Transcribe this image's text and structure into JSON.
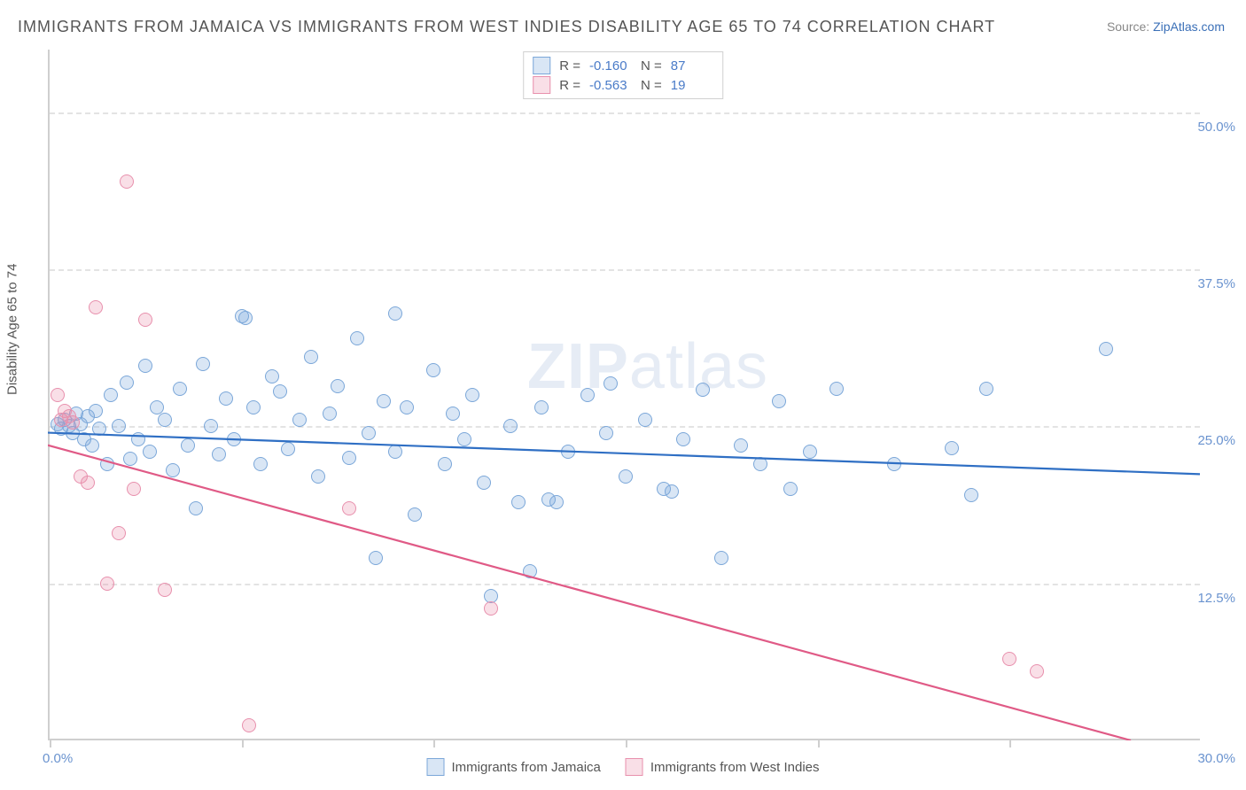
{
  "title": "IMMIGRANTS FROM JAMAICA VS IMMIGRANTS FROM WEST INDIES DISABILITY AGE 65 TO 74 CORRELATION CHART",
  "source_prefix": "Source: ",
  "source_link": "ZipAtlas.com",
  "y_axis_title": "Disability Age 65 to 74",
  "watermark_bold": "ZIP",
  "watermark_light": "atlas",
  "chart": {
    "type": "scatter",
    "xlim": [
      0,
      30
    ],
    "ylim": [
      0,
      55
    ],
    "x_ticks": [
      0,
      5,
      10,
      15,
      20,
      25
    ],
    "x_ticklabels": [
      "0.0%",
      "",
      "",
      "",
      "",
      ""
    ],
    "x_end_label": "30.0%",
    "y_gridlines": [
      12.5,
      25.0,
      37.5,
      50.0
    ],
    "y_ticklabels": [
      "12.5%",
      "25.0%",
      "37.5%",
      "50.0%"
    ],
    "background_color": "#ffffff",
    "grid_color": "#e3e3e3",
    "axis_color": "#cfcfcf",
    "label_color": "#6a93cf",
    "point_radius": 8,
    "series": [
      {
        "name": "Immigrants from Jamaica",
        "fill": "rgba(120,165,220,0.28)",
        "stroke": "#7ba7d9",
        "line_color": "#2f6fc4",
        "line_width": 2.2,
        "R": "-0.160",
        "N": "87",
        "trend": {
          "x1": 0,
          "y1": 24.5,
          "x2": 30,
          "y2": 21.2
        },
        "points": [
          [
            0.2,
            25.2
          ],
          [
            0.3,
            24.8
          ],
          [
            0.4,
            25.5
          ],
          [
            0.5,
            25.0
          ],
          [
            0.6,
            24.5
          ],
          [
            0.7,
            26.0
          ],
          [
            0.8,
            25.2
          ],
          [
            0.9,
            24.0
          ],
          [
            1.0,
            25.8
          ],
          [
            1.1,
            23.5
          ],
          [
            1.2,
            26.2
          ],
          [
            1.3,
            24.8
          ],
          [
            1.5,
            22.0
          ],
          [
            1.6,
            27.5
          ],
          [
            1.8,
            25.0
          ],
          [
            2.0,
            28.5
          ],
          [
            2.1,
            22.4
          ],
          [
            2.3,
            24.0
          ],
          [
            2.5,
            29.8
          ],
          [
            2.6,
            23.0
          ],
          [
            2.8,
            26.5
          ],
          [
            3.0,
            25.5
          ],
          [
            3.2,
            21.5
          ],
          [
            3.4,
            28.0
          ],
          [
            3.6,
            23.5
          ],
          [
            3.8,
            18.5
          ],
          [
            4.0,
            30.0
          ],
          [
            4.2,
            25.0
          ],
          [
            4.4,
            22.8
          ],
          [
            4.6,
            27.2
          ],
          [
            4.8,
            24.0
          ],
          [
            5.0,
            33.8
          ],
          [
            5.1,
            33.6
          ],
          [
            5.3,
            26.5
          ],
          [
            5.5,
            22.0
          ],
          [
            5.8,
            29.0
          ],
          [
            6.0,
            27.8
          ],
          [
            6.2,
            23.2
          ],
          [
            6.5,
            25.5
          ],
          [
            6.8,
            30.5
          ],
          [
            7.0,
            21.0
          ],
          [
            7.3,
            26.0
          ],
          [
            7.5,
            28.2
          ],
          [
            7.8,
            22.5
          ],
          [
            8.0,
            32.0
          ],
          [
            8.3,
            24.5
          ],
          [
            8.5,
            14.5
          ],
          [
            8.7,
            27.0
          ],
          [
            9.0,
            23.0
          ],
          [
            9.0,
            34.0
          ],
          [
            9.3,
            26.5
          ],
          [
            9.5,
            18.0
          ],
          [
            10.0,
            29.5
          ],
          [
            10.3,
            22.0
          ],
          [
            10.5,
            26.0
          ],
          [
            10.8,
            24.0
          ],
          [
            11.0,
            27.5
          ],
          [
            11.3,
            20.5
          ],
          [
            11.5,
            11.5
          ],
          [
            12.0,
            25.0
          ],
          [
            12.2,
            19.0
          ],
          [
            12.5,
            13.5
          ],
          [
            12.8,
            26.5
          ],
          [
            13.0,
            19.2
          ],
          [
            13.2,
            19.0
          ],
          [
            13.5,
            23.0
          ],
          [
            14.0,
            27.5
          ],
          [
            14.5,
            24.5
          ],
          [
            14.6,
            28.4
          ],
          [
            15.0,
            21.0
          ],
          [
            15.5,
            25.5
          ],
          [
            16.0,
            20.0
          ],
          [
            16.2,
            19.8
          ],
          [
            16.5,
            24.0
          ],
          [
            17.0,
            27.9
          ],
          [
            17.5,
            14.5
          ],
          [
            18.0,
            23.5
          ],
          [
            18.5,
            22.0
          ],
          [
            19.0,
            27.0
          ],
          [
            19.3,
            20.0
          ],
          [
            19.8,
            23.0
          ],
          [
            20.5,
            28.0
          ],
          [
            22.0,
            22.0
          ],
          [
            23.5,
            23.3
          ],
          [
            24.0,
            19.5
          ],
          [
            24.4,
            28.0
          ],
          [
            27.5,
            31.2
          ]
        ]
      },
      {
        "name": "Immigrants from West Indies",
        "fill": "rgba(235,140,170,0.28)",
        "stroke": "#e890ad",
        "line_color": "#e05a86",
        "line_width": 2.2,
        "R": "-0.563",
        "N": "19",
        "trend": {
          "x1": 0,
          "y1": 23.5,
          "x2": 30,
          "y2": -1.5
        },
        "points": [
          [
            0.2,
            27.5
          ],
          [
            0.3,
            25.5
          ],
          [
            0.4,
            26.2
          ],
          [
            0.5,
            25.8
          ],
          [
            0.6,
            25.3
          ],
          [
            0.8,
            21.0
          ],
          [
            1.0,
            20.5
          ],
          [
            1.2,
            34.5
          ],
          [
            1.5,
            12.5
          ],
          [
            1.8,
            16.5
          ],
          [
            2.0,
            44.5
          ],
          [
            2.2,
            20.0
          ],
          [
            2.5,
            33.5
          ],
          [
            3.0,
            12.0
          ],
          [
            5.2,
            1.2
          ],
          [
            7.8,
            18.5
          ],
          [
            11.5,
            10.5
          ],
          [
            25.0,
            6.5
          ],
          [
            25.7,
            5.5
          ]
        ]
      }
    ]
  },
  "legend_top": {
    "r_label": "R =",
    "n_label": "N ="
  },
  "legend_bottom": {
    "items": [
      "Immigrants from Jamaica",
      "Immigrants from West Indies"
    ]
  }
}
